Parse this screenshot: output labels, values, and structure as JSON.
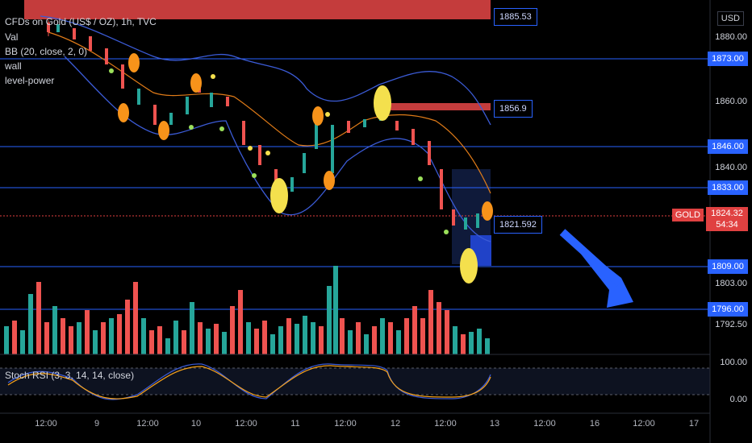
{
  "legend": {
    "title": "CFDs on Gold (US$ / OZ), 1h, TVC",
    "items": [
      "Val",
      "BB (20, close, 2, 0)",
      "wall",
      "level-power"
    ]
  },
  "stoch_label": "Stoch RSI (3, 3, 14, 14, close)",
  "currency": "USD",
  "symbol_tag": "GOLD",
  "current_price": "1824.32",
  "countdown": "54:34",
  "price_axis": [
    "1880.00",
    "1860.00",
    "1840.00",
    "1803.00",
    "1792.50"
  ],
  "level_badges": [
    "1873.00",
    "1846.00",
    "1833.00",
    "1809.00",
    "1796.00"
  ],
  "level_tags": [
    "1885.53",
    "1856.9",
    "1821.592"
  ],
  "stoch_axis": [
    "100.00",
    "0.00"
  ],
  "time_axis": [
    "12:00",
    "9",
    "12:00",
    "10",
    "12:00",
    "11",
    "12:00",
    "12",
    "12:00",
    "13",
    "12:00",
    "16",
    "12:00",
    "17"
  ],
  "colors": {
    "level_line": "#2962ff",
    "up": "#26a69a",
    "down": "#ef5350",
    "bb": "#3b5bd6",
    "basis": "#e07b18",
    "wall": "#c43c3c"
  },
  "chart_data": {
    "type": "candlestick",
    "symbol": "GOLD",
    "interval": "1h",
    "horizontal_levels": [
      1873.0,
      1846.0,
      1833.0,
      1809.0,
      1796.0
    ],
    "last_price": 1824.32
  }
}
